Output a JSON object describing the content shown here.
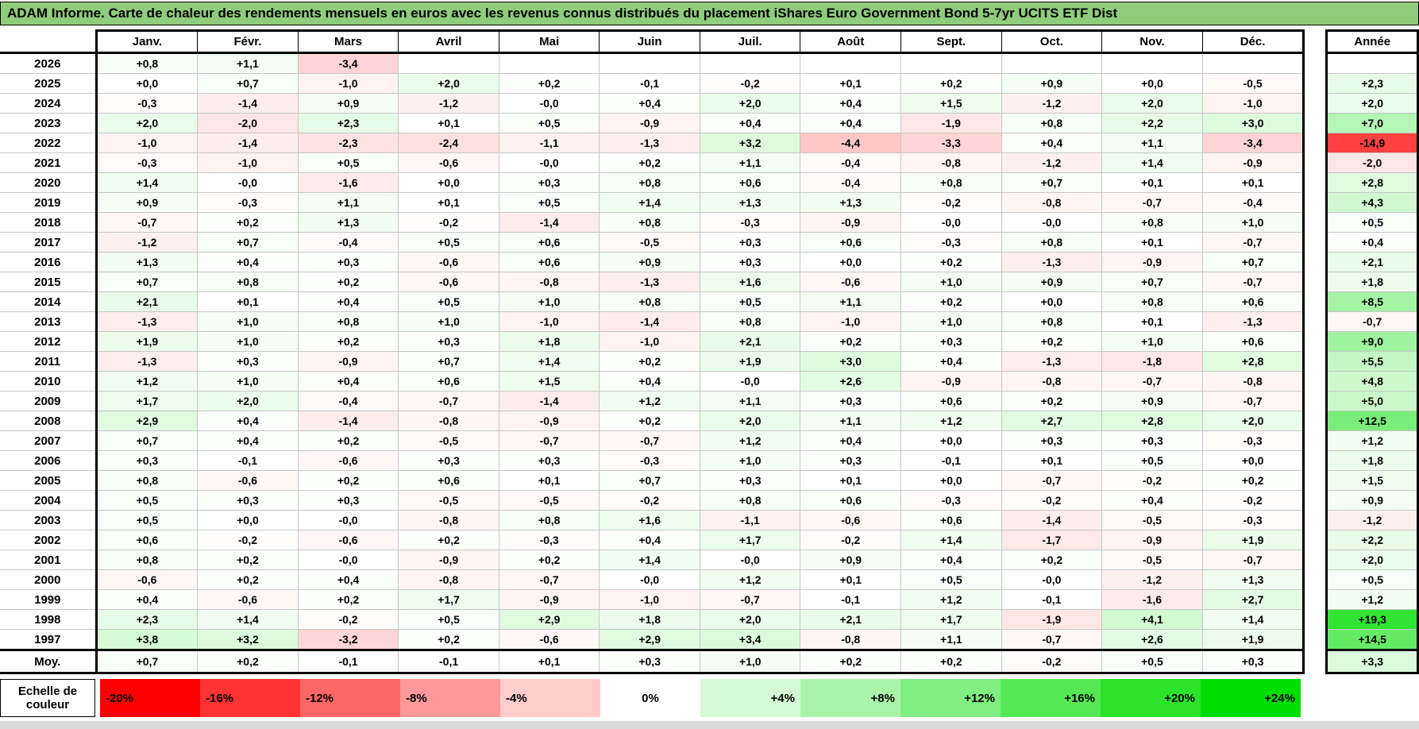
{
  "title": "ADAM Informe. Carte de chaleur des rendements mensuels en euros avec les revenus connus distribués du placement iShares Euro Government Bond 5-7yr UCITS ETF Dist",
  "months": [
    "Janv.",
    "Févr.",
    "Mars",
    "Avril",
    "Mai",
    "Juin",
    "Juil.",
    "Août",
    "Sept.",
    "Oct.",
    "Nov.",
    "Déc."
  ],
  "annee_header": "Année",
  "rows": [
    {
      "year": "2026",
      "values": [
        "+0,8",
        "+1,1",
        "-3,4",
        "",
        "",
        "",
        "",
        "",
        "",
        "",
        "",
        ""
      ],
      "annee": ""
    },
    {
      "year": "2025",
      "values": [
        "+0,0",
        "+0,7",
        "-1,0",
        "+2,0",
        "+0,2",
        "-0,1",
        "-0,2",
        "+0,1",
        "+0,2",
        "+0,9",
        "+0,0",
        "-0,5"
      ],
      "annee": "+2,3"
    },
    {
      "year": "2024",
      "values": [
        "-0,3",
        "-1,4",
        "+0,9",
        "-1,2",
        "-0,0",
        "+0,4",
        "+2,0",
        "+0,4",
        "+1,5",
        "-1,2",
        "+2,0",
        "-1,0"
      ],
      "annee": "+2,0"
    },
    {
      "year": "2023",
      "values": [
        "+2,0",
        "-2,0",
        "+2,3",
        "+0,1",
        "+0,5",
        "-0,9",
        "+0,4",
        "+0,4",
        "-1,9",
        "+0,8",
        "+2,2",
        "+3,0"
      ],
      "annee": "+7,0"
    },
    {
      "year": "2022",
      "values": [
        "-1,0",
        "-1,4",
        "-2,3",
        "-2,4",
        "-1,1",
        "-1,3",
        "+3,2",
        "-4,4",
        "-3,3",
        "+0,4",
        "+1,1",
        "-3,4"
      ],
      "annee": "-14,9"
    },
    {
      "year": "2021",
      "values": [
        "-0,3",
        "-1,0",
        "+0,5",
        "-0,6",
        "-0,0",
        "+0,2",
        "+1,1",
        "-0,4",
        "-0,8",
        "-1,2",
        "+1,4",
        "-0,9"
      ],
      "annee": "-2,0"
    },
    {
      "year": "2020",
      "values": [
        "+1,4",
        "-0,0",
        "-1,6",
        "+0,0",
        "+0,3",
        "+0,8",
        "+0,6",
        "-0,4",
        "+0,8",
        "+0,7",
        "+0,1",
        "+0,1"
      ],
      "annee": "+2,8"
    },
    {
      "year": "2019",
      "values": [
        "+0,9",
        "-0,3",
        "+1,1",
        "+0,1",
        "+0,5",
        "+1,4",
        "+1,3",
        "+1,3",
        "-0,2",
        "-0,8",
        "-0,7",
        "-0,4"
      ],
      "annee": "+4,3"
    },
    {
      "year": "2018",
      "values": [
        "-0,7",
        "+0,2",
        "+1,3",
        "-0,2",
        "-1,4",
        "+0,8",
        "-0,3",
        "-0,9",
        "-0,0",
        "-0,0",
        "+0,8",
        "+1,0"
      ],
      "annee": "+0,5"
    },
    {
      "year": "2017",
      "values": [
        "-1,2",
        "+0,7",
        "-0,4",
        "+0,5",
        "+0,6",
        "-0,5",
        "+0,3",
        "+0,6",
        "-0,3",
        "+0,8",
        "+0,1",
        "-0,7"
      ],
      "annee": "+0,4"
    },
    {
      "year": "2016",
      "values": [
        "+1,3",
        "+0,4",
        "+0,3",
        "-0,6",
        "+0,6",
        "+0,9",
        "+0,3",
        "+0,0",
        "+0,2",
        "-1,3",
        "-0,9",
        "+0,7"
      ],
      "annee": "+2,1"
    },
    {
      "year": "2015",
      "values": [
        "+0,7",
        "+0,8",
        "+0,2",
        "-0,6",
        "-0,8",
        "-1,3",
        "+1,6",
        "-0,6",
        "+1,0",
        "+0,9",
        "+0,7",
        "-0,7"
      ],
      "annee": "+1,8"
    },
    {
      "year": "2014",
      "values": [
        "+2,1",
        "+0,1",
        "+0,4",
        "+0,5",
        "+1,0",
        "+0,8",
        "+0,5",
        "+1,1",
        "+0,2",
        "+0,0",
        "+0,8",
        "+0,6"
      ],
      "annee": "+8,5"
    },
    {
      "year": "2013",
      "values": [
        "-1,3",
        "+1,0",
        "+0,8",
        "+1,0",
        "-1,0",
        "-1,4",
        "+0,8",
        "-1,0",
        "+1,0",
        "+0,8",
        "+0,1",
        "-1,3"
      ],
      "annee": "-0,7"
    },
    {
      "year": "2012",
      "values": [
        "+1,9",
        "+1,0",
        "+0,2",
        "+0,3",
        "+1,8",
        "-1,0",
        "+2,1",
        "+0,2",
        "+0,3",
        "+0,2",
        "+1,0",
        "+0,6"
      ],
      "annee": "+9,0"
    },
    {
      "year": "2011",
      "values": [
        "-1,3",
        "+0,3",
        "-0,9",
        "+0,7",
        "+1,4",
        "+0,2",
        "+1,9",
        "+3,0",
        "+0,4",
        "-1,3",
        "-1,8",
        "+2,8"
      ],
      "annee": "+5,5"
    },
    {
      "year": "2010",
      "values": [
        "+1,2",
        "+1,0",
        "+0,4",
        "+0,6",
        "+1,5",
        "+0,4",
        "-0,0",
        "+2,6",
        "-0,9",
        "-0,8",
        "-0,7",
        "-0,8"
      ],
      "annee": "+4,8"
    },
    {
      "year": "2009",
      "values": [
        "+1,7",
        "+2,0",
        "-0,4",
        "-0,7",
        "-1,4",
        "+1,2",
        "+1,1",
        "+0,3",
        "+0,6",
        "+0,2",
        "+0,9",
        "-0,7"
      ],
      "annee": "+5,0"
    },
    {
      "year": "2008",
      "values": [
        "+2,9",
        "+0,4",
        "-1,4",
        "-0,8",
        "-0,9",
        "+0,2",
        "+2,0",
        "+1,1",
        "+1,2",
        "+2,7",
        "+2,8",
        "+2,0"
      ],
      "annee": "+12,5"
    },
    {
      "year": "2007",
      "values": [
        "+0,7",
        "+0,4",
        "+0,2",
        "-0,5",
        "-0,7",
        "-0,7",
        "+1,2",
        "+0,4",
        "+0,0",
        "+0,3",
        "+0,3",
        "-0,3"
      ],
      "annee": "+1,2"
    },
    {
      "year": "2006",
      "values": [
        "+0,3",
        "-0,1",
        "-0,6",
        "+0,3",
        "+0,3",
        "-0,3",
        "+1,0",
        "+0,3",
        "-0,1",
        "+0,1",
        "+0,5",
        "+0,0"
      ],
      "annee": "+1,8"
    },
    {
      "year": "2005",
      "values": [
        "+0,8",
        "-0,6",
        "+0,2",
        "+0,6",
        "+0,1",
        "+0,7",
        "+0,3",
        "+0,1",
        "+0,0",
        "-0,7",
        "-0,2",
        "+0,2"
      ],
      "annee": "+1,5"
    },
    {
      "year": "2004",
      "values": [
        "+0,5",
        "+0,3",
        "+0,3",
        "-0,5",
        "-0,5",
        "-0,2",
        "+0,8",
        "+0,6",
        "-0,3",
        "-0,2",
        "+0,4",
        "-0,2"
      ],
      "annee": "+0,9"
    },
    {
      "year": "2003",
      "values": [
        "+0,5",
        "+0,0",
        "-0,0",
        "-0,8",
        "+0,8",
        "+1,6",
        "-1,1",
        "-0,6",
        "+0,6",
        "-1,4",
        "-0,5",
        "-0,3"
      ],
      "annee": "-1,2"
    },
    {
      "year": "2002",
      "values": [
        "+0,6",
        "-0,2",
        "-0,6",
        "+0,2",
        "-0,3",
        "+0,4",
        "+1,7",
        "-0,2",
        "+1,4",
        "-1,7",
        "-0,9",
        "+1,9"
      ],
      "annee": "+2,2"
    },
    {
      "year": "2001",
      "values": [
        "+0,8",
        "+0,2",
        "-0,0",
        "-0,9",
        "+0,2",
        "+1,4",
        "-0,0",
        "+0,9",
        "+0,4",
        "+0,2",
        "-0,5",
        "-0,7"
      ],
      "annee": "+2,0"
    },
    {
      "year": "2000",
      "values": [
        "-0,6",
        "+0,2",
        "+0,4",
        "-0,8",
        "-0,7",
        "-0,0",
        "+1,2",
        "+0,1",
        "+0,5",
        "-0,0",
        "-1,2",
        "+1,3"
      ],
      "annee": "+0,5"
    },
    {
      "year": "1999",
      "values": [
        "+0,4",
        "-0,6",
        "+0,2",
        "+1,7",
        "-0,9",
        "-1,0",
        "-0,7",
        "-0,1",
        "+1,2",
        "-0,1",
        "-1,6",
        "+2,7"
      ],
      "annee": "+1,2"
    },
    {
      "year": "1998",
      "values": [
        "+2,3",
        "+1,4",
        "-0,2",
        "+0,5",
        "+2,9",
        "+1,8",
        "+2,0",
        "+2,1",
        "+1,7",
        "-1,9",
        "+4,1",
        "+1,4"
      ],
      "annee": "+19,3"
    },
    {
      "year": "1997",
      "values": [
        "+3,8",
        "+3,2",
        "-3,2",
        "+0,2",
        "-0,6",
        "+2,9",
        "+3,4",
        "-0,8",
        "+1,1",
        "-0,7",
        "+2,6",
        "+1,9"
      ],
      "annee": "+14,5"
    }
  ],
  "moy": {
    "label": "Moy.",
    "values": [
      "+0,7",
      "+0,2",
      "-0,1",
      "-0,1",
      "+0,1",
      "+0,3",
      "+1,0",
      "+0,2",
      "+0,2",
      "-0,2",
      "+0,5",
      "+0,3"
    ],
    "annee": "+3,3"
  },
  "legend": {
    "label": "Echelle de couleur",
    "stops": [
      {
        "label": "-20%",
        "value": -20
      },
      {
        "label": "-16%",
        "value": -16
      },
      {
        "label": "-12%",
        "value": -12
      },
      {
        "label": "-8%",
        "value": -8
      },
      {
        "label": "-4%",
        "value": -4
      },
      {
        "label": "0%",
        "value": 0
      },
      {
        "label": "+4%",
        "value": 4
      },
      {
        "label": "+8%",
        "value": 8
      },
      {
        "label": "+12%",
        "value": 12
      },
      {
        "label": "+16%",
        "value": 16
      },
      {
        "label": "+20%",
        "value": 20
      },
      {
        "label": "+24%",
        "value": 24
      }
    ]
  },
  "colors": {
    "title_bar_bg": "#8FCD7C",
    "negative_max": "#FF0000",
    "positive_max": "#00DD00",
    "neutral": "#FFFFFF",
    "thin_border": "#C6C6C6",
    "thick_border": "#000000",
    "bottom_strip": "#D9D9D9",
    "scale_min": -20,
    "scale_max": 24
  },
  "chart_data": {
    "type": "heatmap",
    "title": "ADAM Informe. Carte de chaleur des rendements mensuels en euros avec les revenus connus distribués du placement iShares Euro Government Bond 5-7yr UCITS ETF Dist",
    "x_categories": [
      "Janv.",
      "Févr.",
      "Mars",
      "Avril",
      "Mai",
      "Juin",
      "Juil.",
      "Août",
      "Sept.",
      "Oct.",
      "Nov.",
      "Déc."
    ],
    "y_categories": [
      "2026",
      "2025",
      "2024",
      "2023",
      "2022",
      "2021",
      "2020",
      "2019",
      "2018",
      "2017",
      "2016",
      "2015",
      "2014",
      "2013",
      "2012",
      "2011",
      "2010",
      "2009",
      "2008",
      "2007",
      "2006",
      "2005",
      "2004",
      "2003",
      "2002",
      "2001",
      "2000",
      "1999",
      "1998",
      "1997",
      "Moy."
    ],
    "values": [
      [
        0.8,
        1.1,
        -3.4,
        null,
        null,
        null,
        null,
        null,
        null,
        null,
        null,
        null
      ],
      [
        0.0,
        0.7,
        -1.0,
        2.0,
        0.2,
        -0.1,
        -0.2,
        0.1,
        0.2,
        0.9,
        0.0,
        -0.5
      ],
      [
        -0.3,
        -1.4,
        0.9,
        -1.2,
        -0.0,
        0.4,
        2.0,
        0.4,
        1.5,
        -1.2,
        2.0,
        -1.0
      ],
      [
        2.0,
        -2.0,
        2.3,
        0.1,
        0.5,
        -0.9,
        0.4,
        0.4,
        -1.9,
        0.8,
        2.2,
        3.0
      ],
      [
        -1.0,
        -1.4,
        -2.3,
        -2.4,
        -1.1,
        -1.3,
        3.2,
        -4.4,
        -3.3,
        0.4,
        1.1,
        -3.4
      ],
      [
        -0.3,
        -1.0,
        0.5,
        -0.6,
        -0.0,
        0.2,
        1.1,
        -0.4,
        -0.8,
        -1.2,
        1.4,
        -0.9
      ],
      [
        1.4,
        -0.0,
        -1.6,
        0.0,
        0.3,
        0.8,
        0.6,
        -0.4,
        0.8,
        0.7,
        0.1,
        0.1
      ],
      [
        0.9,
        -0.3,
        1.1,
        0.1,
        0.5,
        1.4,
        1.3,
        1.3,
        -0.2,
        -0.8,
        -0.7,
        -0.4
      ],
      [
        -0.7,
        0.2,
        1.3,
        -0.2,
        -1.4,
        0.8,
        -0.3,
        -0.9,
        -0.0,
        -0.0,
        0.8,
        1.0
      ],
      [
        -1.2,
        0.7,
        -0.4,
        0.5,
        0.6,
        -0.5,
        0.3,
        0.6,
        -0.3,
        0.8,
        0.1,
        -0.7
      ],
      [
        1.3,
        0.4,
        0.3,
        -0.6,
        0.6,
        0.9,
        0.3,
        0.0,
        0.2,
        -1.3,
        -0.9,
        0.7
      ],
      [
        0.7,
        0.8,
        0.2,
        -0.6,
        -0.8,
        -1.3,
        1.6,
        -0.6,
        1.0,
        0.9,
        0.7,
        -0.7
      ],
      [
        2.1,
        0.1,
        0.4,
        0.5,
        1.0,
        0.8,
        0.5,
        1.1,
        0.2,
        0.0,
        0.8,
        0.6
      ],
      [
        -1.3,
        1.0,
        0.8,
        1.0,
        -1.0,
        -1.4,
        0.8,
        -1.0,
        1.0,
        0.8,
        0.1,
        -1.3
      ],
      [
        1.9,
        1.0,
        0.2,
        0.3,
        1.8,
        -1.0,
        2.1,
        0.2,
        0.3,
        0.2,
        1.0,
        0.6
      ],
      [
        -1.3,
        0.3,
        -0.9,
        0.7,
        1.4,
        0.2,
        1.9,
        3.0,
        0.4,
        -1.3,
        -1.8,
        2.8
      ],
      [
        1.2,
        1.0,
        0.4,
        0.6,
        1.5,
        0.4,
        -0.0,
        2.6,
        -0.9,
        -0.8,
        -0.7,
        -0.8
      ],
      [
        1.7,
        2.0,
        -0.4,
        -0.7,
        -1.4,
        1.2,
        1.1,
        0.3,
        0.6,
        0.2,
        0.9,
        -0.7
      ],
      [
        2.9,
        0.4,
        -1.4,
        -0.8,
        -0.9,
        0.2,
        2.0,
        1.1,
        1.2,
        2.7,
        2.8,
        2.0
      ],
      [
        0.7,
        0.4,
        0.2,
        -0.5,
        -0.7,
        -0.7,
        1.2,
        0.4,
        0.0,
        0.3,
        0.3,
        -0.3
      ],
      [
        0.3,
        -0.1,
        -0.6,
        0.3,
        0.3,
        -0.3,
        1.0,
        0.3,
        -0.1,
        0.1,
        0.5,
        0.0
      ],
      [
        0.8,
        -0.6,
        0.2,
        0.6,
        0.1,
        0.7,
        0.3,
        0.1,
        0.0,
        -0.7,
        -0.2,
        0.2
      ],
      [
        0.5,
        0.3,
        0.3,
        -0.5,
        -0.5,
        -0.2,
        0.8,
        0.6,
        -0.3,
        -0.2,
        0.4,
        -0.2
      ],
      [
        0.5,
        0.0,
        -0.0,
        -0.8,
        0.8,
        1.6,
        -1.1,
        -0.6,
        0.6,
        -1.4,
        -0.5,
        -0.3
      ],
      [
        0.6,
        -0.2,
        -0.6,
        0.2,
        -0.3,
        0.4,
        1.7,
        -0.2,
        1.4,
        -1.7,
        -0.9,
        1.9
      ],
      [
        0.8,
        0.2,
        -0.0,
        -0.9,
        0.2,
        1.4,
        -0.0,
        0.9,
        0.4,
        0.2,
        -0.5,
        -0.7
      ],
      [
        -0.6,
        0.2,
        0.4,
        -0.8,
        -0.7,
        -0.0,
        1.2,
        0.1,
        0.5,
        -0.0,
        -1.2,
        1.3
      ],
      [
        0.4,
        -0.6,
        0.2,
        1.7,
        -0.9,
        -1.0,
        -0.7,
        -0.1,
        1.2,
        -0.1,
        -1.6,
        2.7
      ],
      [
        2.3,
        1.4,
        -0.2,
        0.5,
        2.9,
        1.8,
        2.0,
        2.1,
        1.7,
        -1.9,
        4.1,
        1.4
      ],
      [
        3.8,
        3.2,
        -3.2,
        0.2,
        -0.6,
        2.9,
        3.4,
        -0.8,
        1.1,
        -0.7,
        2.6,
        1.9
      ],
      [
        0.7,
        0.2,
        -0.1,
        -0.1,
        0.1,
        0.3,
        1.0,
        0.2,
        0.2,
        -0.2,
        0.5,
        0.3
      ]
    ],
    "annual_column_label": "Année",
    "annual_values": [
      null,
      2.3,
      2.0,
      7.0,
      -14.9,
      -2.0,
      2.8,
      4.3,
      0.5,
      0.4,
      2.1,
      1.8,
      8.5,
      -0.7,
      9.0,
      5.5,
      4.8,
      5.0,
      12.5,
      1.2,
      1.8,
      1.5,
      0.9,
      -1.2,
      2.2,
      2.0,
      0.5,
      1.2,
      19.3,
      14.5,
      3.3
    ],
    "color_scale": {
      "min": -20,
      "mid": 0,
      "max": 24,
      "min_color": "#FF0000",
      "mid_color": "#FFFFFF",
      "max_color": "#00DD00",
      "legend_ticks": [
        "-20%",
        "-16%",
        "-12%",
        "-8%",
        "-4%",
        "0%",
        "+4%",
        "+8%",
        "+12%",
        "+16%",
        "+20%",
        "+24%"
      ]
    },
    "legend_position": "bottom",
    "grid": true
  }
}
